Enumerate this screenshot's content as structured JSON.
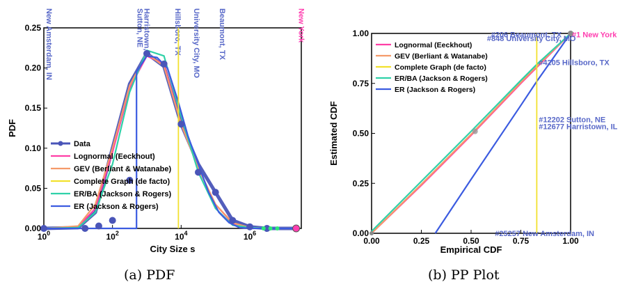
{
  "colors": {
    "data": "#4a55b8",
    "lognormal": "#ff3fa6",
    "gev": "#f59a6a",
    "complete": "#f2e12e",
    "erba": "#2fd1a8",
    "er": "#3b5be0",
    "annotation": "#5868c8",
    "newyork": "#ff3fb0",
    "scatter_green": "#2ee879"
  },
  "captions": {
    "a": "(a) PDF",
    "b": "(b) PP Plot"
  },
  "chart_data": [
    {
      "id": "pdf",
      "type": "line",
      "xlabel": "City Size s",
      "ylabel": "PDF",
      "xscale": "log",
      "xlim_log10": [
        0,
        7.5
      ],
      "ylim": [
        0,
        0.25
      ],
      "xticks": [
        {
          "log10": 0,
          "base": "10",
          "exp": "0"
        },
        {
          "log10": 2,
          "base": "10",
          "exp": "2"
        },
        {
          "log10": 4,
          "base": "10",
          "exp": "4"
        },
        {
          "log10": 6,
          "base": "10",
          "exp": "6"
        }
      ],
      "yticks": [
        "0.00",
        "0.05",
        "0.10",
        "0.15",
        "0.20",
        "0.25"
      ],
      "ytick_values": [
        0,
        0.05,
        0.1,
        0.15,
        0.2,
        0.25
      ],
      "legend_position": "lower-left",
      "legend": [
        {
          "name": "Data",
          "key": "data",
          "marker": true
        },
        {
          "name": "Lognormal (Eeckhout)",
          "key": "lognormal"
        },
        {
          "name": "GEV (Berliant & Watanabe)",
          "key": "gev"
        },
        {
          "name": "Complete Graph (de facto)",
          "key": "complete"
        },
        {
          "name": "ER/BA (Jackson & Rogers)",
          "key": "erba"
        },
        {
          "name": "ER (Jackson & Rogers)",
          "key": "er"
        }
      ],
      "series": [
        {
          "key": "data",
          "x_log10": [
            0,
            1,
            1.5,
            2,
            2.5,
            3,
            3.5,
            4,
            4.5,
            5,
            5.5,
            6,
            6.5,
            7.35
          ],
          "y": [
            0,
            0.001,
            0.02,
            0.1,
            0.18,
            0.218,
            0.202,
            0.13,
            0.08,
            0.045,
            0.01,
            0.002,
            0,
            0
          ]
        },
        {
          "key": "lognormal",
          "x_log10": [
            0,
            1,
            1.5,
            2,
            2.5,
            3,
            3.5,
            4,
            4.5,
            5,
            5.5,
            6,
            6.5,
            7.35
          ],
          "y": [
            0,
            0.002,
            0.025,
            0.095,
            0.175,
            0.215,
            0.205,
            0.13,
            0.075,
            0.03,
            0.006,
            0.001,
            0,
            0
          ]
        },
        {
          "key": "gev",
          "x_log10": [
            0,
            1,
            1.5,
            2,
            2.5,
            3,
            3.5,
            4,
            4.5,
            5,
            5.5,
            6,
            6.5,
            7.35
          ],
          "y": [
            0,
            0.003,
            0.03,
            0.1,
            0.178,
            0.218,
            0.202,
            0.13,
            0.075,
            0.03,
            0.007,
            0.001,
            0,
            0
          ]
        },
        {
          "key": "erba",
          "x_log10": [
            0,
            1,
            1.5,
            2,
            2.5,
            3,
            3.5,
            4,
            4.5,
            5,
            5.5,
            6,
            6.5,
            7.35
          ],
          "y": [
            0,
            0.001,
            0.02,
            0.08,
            0.17,
            0.222,
            0.215,
            0.14,
            0.07,
            0.025,
            0.004,
            0.001,
            0,
            0
          ]
        },
        {
          "key": "er",
          "x_log10": [
            0,
            1,
            1.5,
            2,
            2.5,
            2.7,
            2.7,
            3.0,
            3.3,
            3.6,
            3.9,
            4.2,
            4.5,
            4.8,
            5.1,
            5.4,
            5.7,
            6.0,
            7.35
          ],
          "y": [
            0,
            0,
            0,
            0,
            0,
            0,
            0.195,
            0.215,
            0.213,
            0.2,
            0.16,
            0.115,
            0.08,
            0.045,
            0.02,
            0.007,
            0.001,
            0,
            0
          ]
        },
        {
          "key": "complete",
          "vline_log10": 3.92
        }
      ],
      "data_markers": {
        "x_log10": [
          0,
          1.2,
          1.6,
          2.0,
          2.5,
          3.0,
          3.5,
          4.0,
          4.5,
          5.0,
          5.5,
          6.0,
          6.5,
          7.35
        ],
        "y": [
          0,
          0,
          0.003,
          0.01,
          0.06,
          0.218,
          0.205,
          0.13,
          0.07,
          0.045,
          0.01,
          0.002,
          0,
          0
        ]
      },
      "green_dots_log10": [
        6.4,
        6.6,
        6.8
      ],
      "annotations": [
        {
          "text": "New Amsterdam, IN",
          "log10": 0.0,
          "color_key": "annotation"
        },
        {
          "text": "Harristown, IL",
          "log10": 2.85,
          "color_key": "annotation"
        },
        {
          "text": "Sutton, NE",
          "log10": 2.65,
          "color_key": "annotation"
        },
        {
          "text": "Hillsboro, TX",
          "log10": 3.75,
          "color_key": "annotation"
        },
        {
          "text": "University City, MO",
          "log10": 4.3,
          "color_key": "annotation"
        },
        {
          "text": "Beaumont, TX",
          "log10": 5.05,
          "color_key": "annotation"
        },
        {
          "text": "New York",
          "log10": 7.35,
          "color_key": "newyork"
        }
      ]
    },
    {
      "id": "pp",
      "type": "line",
      "xlabel": "Empirical CDF",
      "ylabel": "Estimated CDF",
      "xlim": [
        0,
        1
      ],
      "ylim": [
        0,
        1
      ],
      "xticks": [
        "0.00",
        "0.25",
        "0.50",
        "0.75",
        "1.00"
      ],
      "yticks": [
        "0.00",
        "0.25",
        "0.50",
        "0.75",
        "1.00"
      ],
      "tick_values": [
        0,
        0.25,
        0.5,
        0.75,
        1.0
      ],
      "legend_position": "top-left",
      "legend": [
        {
          "name": "Lognormal (Eeckhout)",
          "key": "lognormal"
        },
        {
          "name": "GEV (Berliant & Watanabe)",
          "key": "gev"
        },
        {
          "name": "Complete Graph (de facto)",
          "key": "complete"
        },
        {
          "name": "ER/BA (Jackson & Rogers)",
          "key": "erba"
        },
        {
          "name": "ER (Jackson & Rogers)",
          "key": "er"
        }
      ],
      "series": [
        {
          "key": "lognormal",
          "x": [
            0,
            0.25,
            0.5,
            0.75,
            0.83,
            1.0
          ],
          "y": [
            0,
            0.24,
            0.49,
            0.75,
            0.83,
            1.0
          ]
        },
        {
          "key": "gev",
          "x": [
            0,
            0.25,
            0.5,
            0.75,
            0.83,
            1.0
          ],
          "y": [
            0,
            0.245,
            0.495,
            0.755,
            0.835,
            1.0
          ]
        },
        {
          "key": "erba",
          "x": [
            0,
            0.25,
            0.5,
            0.75,
            0.83,
            1.0
          ],
          "y": [
            0.01,
            0.26,
            0.51,
            0.765,
            0.845,
            1.0
          ]
        },
        {
          "key": "er",
          "x": [
            0.32,
            0.5,
            0.75,
            0.83,
            1.0
          ],
          "y": [
            0,
            0.27,
            0.64,
            0.76,
            1.0
          ]
        },
        {
          "key": "complete",
          "vline_x": 0.83
        }
      ],
      "data_marker": {
        "x": 0.52,
        "y": 0.51
      },
      "annotations": [
        {
          "text": "#206 Beaumont, TX",
          "x": 0.6,
          "y": 0.995
        },
        {
          "text": "#1 New York",
          "x": 1.0,
          "y": 0.995,
          "color_key": "newyork"
        },
        {
          "text": "#848 University City, MO",
          "x": 0.58,
          "y": 0.975
        },
        {
          "text": "#4205 Hillsboro, TX",
          "x": 0.84,
          "y": 0.855
        },
        {
          "text": "#12202 Sutton, NE",
          "x": 0.84,
          "y": 0.57
        },
        {
          "text": "#12677 Harristown, IL",
          "x": 0.84,
          "y": 0.535
        },
        {
          "text": "#25257 New Amsterdam, IN",
          "x": 0.62,
          "y": 0.0
        }
      ]
    }
  ]
}
